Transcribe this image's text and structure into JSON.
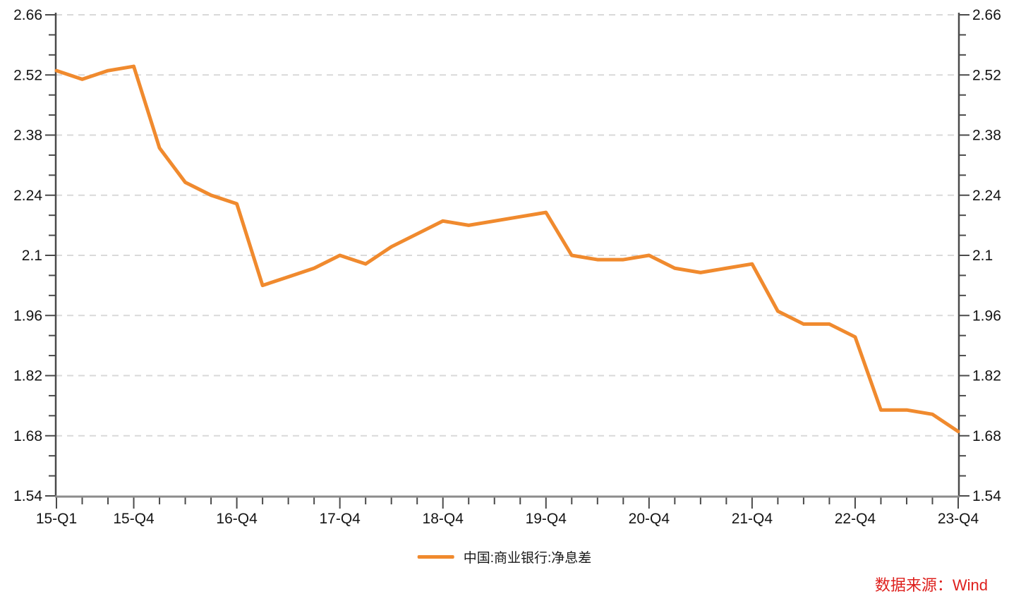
{
  "chart_data": {
    "type": "line",
    "title": "",
    "x_quarters": [
      "15-Q1",
      "15-Q2",
      "15-Q3",
      "15-Q4",
      "16-Q1",
      "16-Q2",
      "16-Q3",
      "16-Q4",
      "17-Q1",
      "17-Q2",
      "17-Q3",
      "17-Q4",
      "18-Q1",
      "18-Q2",
      "18-Q3",
      "18-Q4",
      "19-Q1",
      "19-Q2",
      "19-Q3",
      "19-Q4",
      "20-Q1",
      "20-Q2",
      "20-Q3",
      "20-Q4",
      "21-Q1",
      "21-Q2",
      "21-Q3",
      "21-Q4",
      "22-Q1",
      "22-Q2",
      "22-Q3",
      "22-Q4",
      "23-Q1",
      "23-Q2",
      "23-Q3",
      "23-Q4"
    ],
    "x_major_indices": [
      0,
      3,
      7,
      11,
      15,
      19,
      23,
      27,
      31,
      35
    ],
    "x_major_labels": [
      "15-Q1",
      "15-Q4",
      "16-Q4",
      "17-Q4",
      "18-Q4",
      "19-Q4",
      "20-Q4",
      "21-Q4",
      "22-Q4",
      "23-Q4"
    ],
    "series": [
      {
        "name": "中国:商业银行:净息差",
        "color": "#f08a2e",
        "values": [
          2.53,
          2.51,
          2.53,
          2.54,
          2.35,
          2.27,
          2.24,
          2.22,
          2.03,
          2.05,
          2.07,
          2.1,
          2.08,
          2.12,
          2.15,
          2.18,
          2.17,
          2.18,
          2.19,
          2.2,
          2.1,
          2.09,
          2.09,
          2.1,
          2.07,
          2.06,
          2.07,
          2.08,
          1.97,
          1.94,
          1.94,
          1.91,
          1.74,
          1.74,
          1.73,
          1.69
        ]
      }
    ],
    "y_ticks": [
      2.66,
      2.52,
      2.38,
      2.24,
      2.1,
      1.96,
      1.82,
      1.68,
      1.54
    ],
    "y_tick_labels": [
      "2.66",
      "2.52",
      "2.38",
      "2.24",
      "2.1",
      "1.96",
      "1.82",
      "1.68",
      "1.54"
    ],
    "ylim": [
      1.54,
      2.66
    ],
    "minor_y_divisions": 3,
    "grid": "horizontal-dashed",
    "axes_mirrored": true,
    "legend_position": "bottom-center",
    "xlabel": "",
    "ylabel": ""
  },
  "legend": {
    "label": "中国:商业银行:净息差",
    "swatch_color": "#f08a2e"
  },
  "source_note": {
    "text": "数据来源：Wind",
    "color": "#de201d"
  },
  "colors": {
    "series_line": "#f08a2e",
    "gridline": "#d9d9d9",
    "axis": "#4a4a4a",
    "x_axis_line": "#8c8c8c",
    "tick_label": "#141414",
    "source_text": "#de201d",
    "background": "#ffffff"
  }
}
